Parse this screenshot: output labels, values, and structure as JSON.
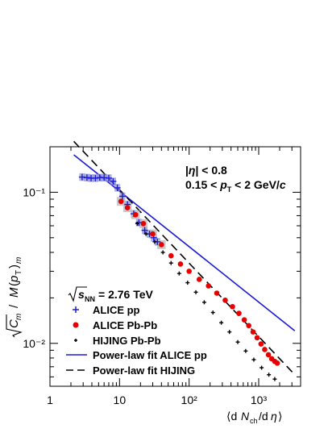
{
  "chart_data": {
    "type": "scatter",
    "xscale": "log",
    "yscale": "log",
    "xlim": [
      1,
      4000
    ],
    "ylim": [
      0.0052,
      0.2
    ],
    "xlabel": "⟨dN_ch/dη⟩",
    "ylabel": "√C_m / M(p_T)_m",
    "x_ticks": [
      1,
      10,
      100,
      1000
    ],
    "x_tick_labels": [
      "1",
      "10",
      "10²",
      "10³"
    ],
    "y_ticks": [
      0.01,
      0.1
    ],
    "y_tick_labels": [
      "10⁻²",
      "10⁻¹"
    ],
    "annotations": {
      "cut_eta": "|η| < 0.8",
      "cut_pt": "0.15 < p_T < 2 GeV/c",
      "energy": "√s_NN = 2.76 TeV"
    },
    "series": [
      {
        "name": "ALICE pp",
        "color": "#1a1ad6",
        "marker": "cross",
        "x": [
          2.9,
          3.4,
          3.9,
          4.5,
          5.2,
          6.0,
          7.0,
          8.1,
          9.3,
          11.0,
          13.0,
          16.0,
          19.0,
          23.0,
          27.0,
          31.0,
          35.0
        ],
        "y": [
          0.126,
          0.125,
          0.124,
          0.124,
          0.125,
          0.125,
          0.124,
          0.118,
          0.107,
          0.094,
          0.083,
          0.072,
          0.063,
          0.056,
          0.053,
          0.05,
          0.047
        ]
      },
      {
        "name": "ALICE Pb-Pb",
        "color": "#e60000",
        "marker": "circle",
        "x": [
          10.5,
          13,
          17,
          22,
          30,
          40,
          55,
          75,
          100,
          140,
          190,
          250,
          330,
          420,
          520,
          620,
          720,
          830,
          950,
          1080,
          1220,
          1380,
          1540,
          1700,
          1850
        ],
        "y": [
          0.087,
          0.079,
          0.071,
          0.062,
          0.053,
          0.045,
          0.038,
          0.0335,
          0.03,
          0.0265,
          0.024,
          0.0215,
          0.0193,
          0.0175,
          0.0158,
          0.0143,
          0.0131,
          0.0119,
          0.0109,
          0.0099,
          0.0091,
          0.0084,
          0.0079,
          0.0076,
          0.0074
        ]
      },
      {
        "name": "HIJING Pb-Pb",
        "color": "#000000",
        "marker": "cross-small",
        "x": [
          18,
          24,
          32,
          42,
          55,
          72,
          95,
          125,
          165,
          220,
          290,
          380,
          500,
          650,
          850,
          1100,
          1400,
          1700
        ],
        "y": [
          0.062,
          0.053,
          0.047,
          0.04,
          0.034,
          0.029,
          0.0252,
          0.0218,
          0.0187,
          0.016,
          0.0137,
          0.0119,
          0.0102,
          0.0089,
          0.0078,
          0.0069,
          0.0062,
          0.0058
        ]
      }
    ],
    "fits": [
      {
        "name": "Power-law fit ALICE pp",
        "color": "#1a1ad6",
        "dash": "solid",
        "x": [
          2.2,
          3300
        ],
        "y": [
          0.177,
          0.0121
        ]
      },
      {
        "name": "Power-law fit HIJING",
        "color": "#000000",
        "dash": "dashed",
        "x": [
          2.2,
          3300
        ],
        "y": [
          0.217,
          0.0062
        ]
      }
    ],
    "legend_placement": "bottom-left",
    "grid": false
  }
}
